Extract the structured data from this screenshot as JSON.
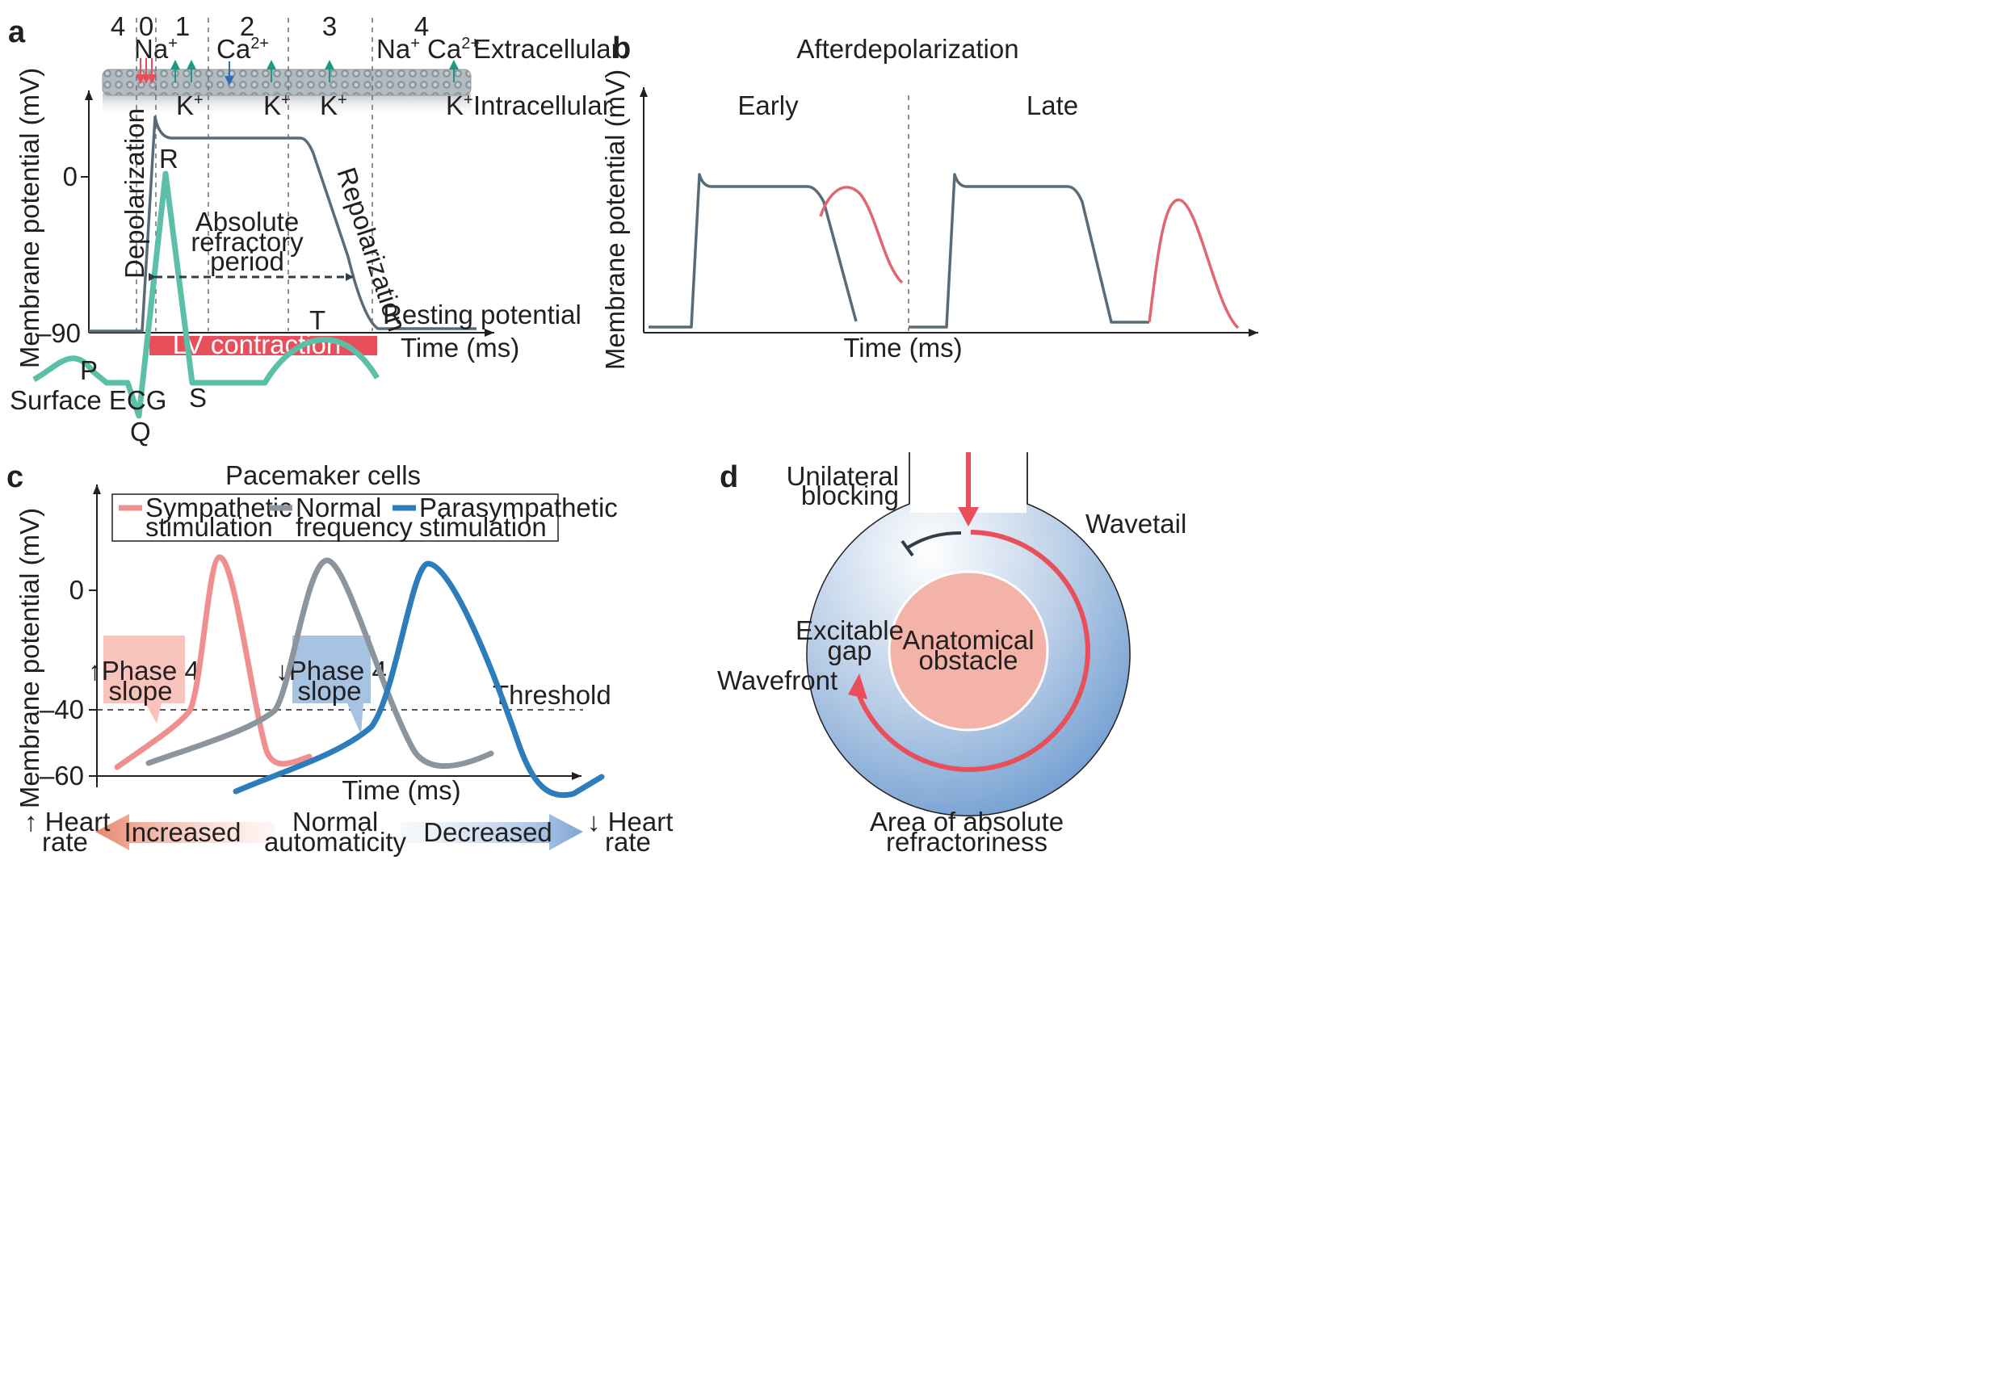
{
  "panel_a": {
    "letter": "a",
    "phase_numbers": [
      "4",
      "0",
      "1",
      "2",
      "3",
      "4"
    ],
    "ions_top": {
      "na": "Na",
      "ca": "Ca",
      "na_ca_na": "Na",
      "na_ca_ca": "Ca",
      "sup_plus": "+",
      "sup_2plus": "2+"
    },
    "k_labels": [
      "K",
      "K",
      "K",
      "K"
    ],
    "extracellular": "Extracellular",
    "intracellular": "Intracellular",
    "y_axis_label": "Membrane potential (mV)",
    "y_ticks": [
      "0",
      "–90"
    ],
    "depolarization": "Depolarization",
    "repolarization": "Repolarization",
    "absolute_refractory_period": [
      "Absolute",
      "refractory",
      "period"
    ],
    "resting_potential": "Resting potential",
    "x_axis_label": "Time (ms)",
    "lv_contraction": "LV contraction",
    "ecg_waves": {
      "p": "P",
      "q": "Q",
      "r": "R",
      "s": "S",
      "t": "T"
    },
    "surface_ecg": "Surface ECG",
    "colors": {
      "membrane": "#9aa3aa",
      "ap_trace": "#5a6b78",
      "ecg": "#5cbfa8",
      "lv_bar": "#e94e5b",
      "na_arrow": "#e94e5b",
      "k_arrow": "#1a9a85",
      "ca_arrow": "#2a6fb7"
    }
  },
  "panel_b": {
    "letter": "b",
    "title": "Afterdepolarization",
    "early": "Early",
    "late": "Late",
    "y_axis_label": "Membrane potential (mV)",
    "x_axis_label": "Time (ms)",
    "colors": {
      "ap_trace": "#5a6b78",
      "afterdepolarization": "#e06670"
    }
  },
  "panel_c": {
    "letter": "c",
    "title": "Pacemaker cells",
    "legend": [
      {
        "label_lines": [
          "Sympathetic",
          "stimulation"
        ],
        "color": "#ef8f8f"
      },
      {
        "label_lines": [
          "Normal",
          "frequency"
        ],
        "color": "#8c959d"
      },
      {
        "label_lines": [
          "Parasympathetic",
          "stimulation"
        ],
        "color": "#2d7dba"
      }
    ],
    "y_axis_label": "Membrane potential (mV)",
    "y_ticks": [
      "0",
      "–40",
      "–60"
    ],
    "threshold": "Threshold",
    "x_axis_label": "Time (ms)",
    "phase4_up": [
      "↑Phase 4",
      "slope"
    ],
    "phase4_down": [
      "↓Phase 4",
      "slope"
    ],
    "heart_rate_up": [
      "↑ Heart",
      "rate"
    ],
    "heart_rate_down": [
      "↓ Heart",
      "rate"
    ],
    "increased": "Increased",
    "decreased": "Decreased",
    "normal_automaticity": [
      "Normal",
      "automaticity"
    ]
  },
  "panel_d": {
    "letter": "d",
    "unilateral_blocking": [
      "Unilateral",
      "blocking"
    ],
    "wavetail": "Wavetail",
    "excitable_gap": [
      "Excitable",
      "gap"
    ],
    "anatomical_obstacle": [
      "Anatomical",
      "obstacle"
    ],
    "wavefront": "Wavefront",
    "area_of_absolute_refractoriness": [
      "Area of absolute",
      "refractoriness"
    ],
    "colors": {
      "obstacle": "#f4b3a8",
      "wave": "#e94e5b",
      "block": "#2f3e48"
    }
  }
}
